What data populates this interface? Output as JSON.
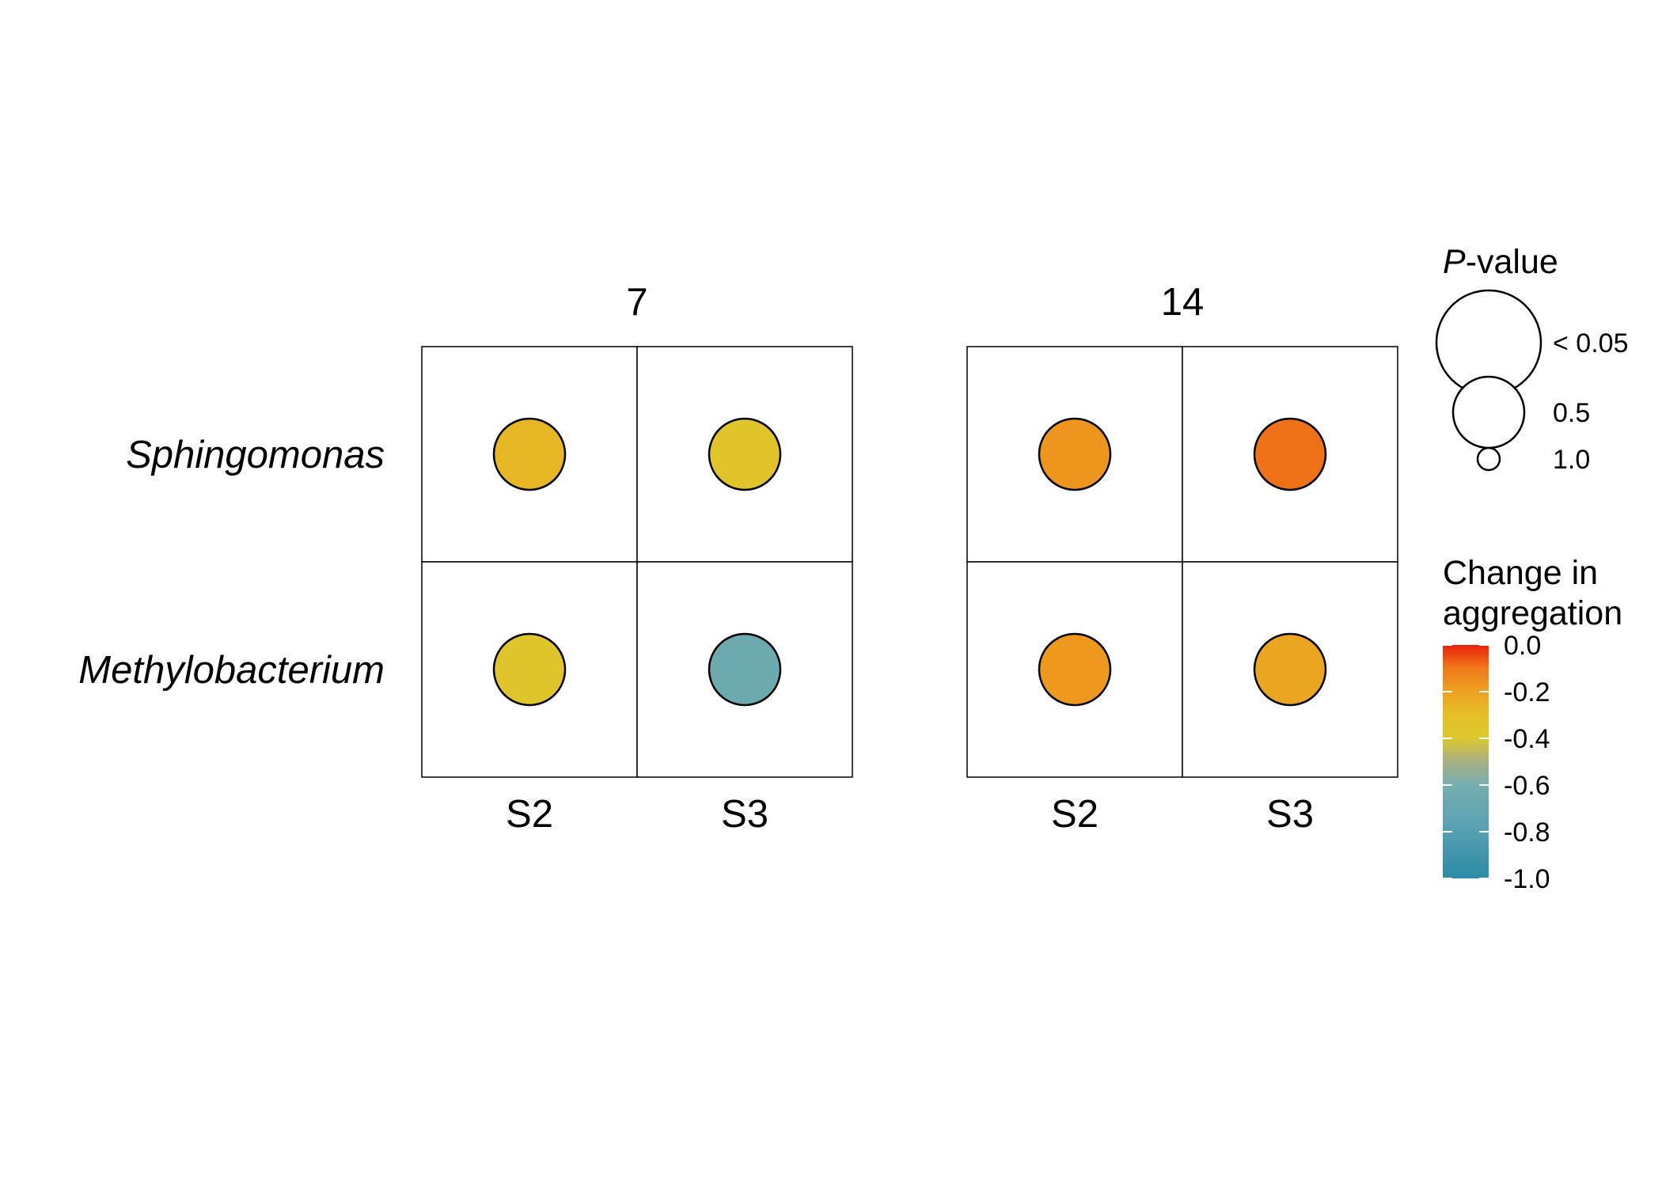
{
  "chart_data": {
    "type": "bubble-grid",
    "panels": [
      {
        "title": "7",
        "cells": [
          {
            "row": "Sphingomonas",
            "col": "S2",
            "change": -0.27,
            "pvalue_size": "0.5"
          },
          {
            "row": "Sphingomonas",
            "col": "S3",
            "change": -0.35,
            "pvalue_size": "0.5"
          },
          {
            "row": "Methylobacterium",
            "col": "S2",
            "change": -0.36,
            "pvalue_size": "0.5"
          },
          {
            "row": "Methylobacterium",
            "col": "S3",
            "change": -0.66,
            "pvalue_size": "0.5"
          }
        ]
      },
      {
        "title": "14",
        "cells": [
          {
            "row": "Sphingomonas",
            "col": "S2",
            "change": -0.17,
            "pvalue_size": "0.5"
          },
          {
            "row": "Sphingomonas",
            "col": "S3",
            "change": -0.09,
            "pvalue_size": "0.5"
          },
          {
            "row": "Methylobacterium",
            "col": "S2",
            "change": -0.18,
            "pvalue_size": "0.5"
          },
          {
            "row": "Methylobacterium",
            "col": "S3",
            "change": -0.22,
            "pvalue_size": "0.5"
          }
        ]
      }
    ],
    "rows": [
      "Sphingomonas",
      "Methylobacterium"
    ],
    "columns": [
      "S2",
      "S3"
    ],
    "size_legend": {
      "title_italic": "P",
      "title_rest": "-value",
      "items": [
        {
          "label": "< 0.05"
        },
        {
          "label": "0.5"
        },
        {
          "label": "1.0"
        }
      ]
    },
    "color_legend": {
      "title_line1": "Change in",
      "title_line2": "aggregation",
      "range": [
        -1.0,
        0.0
      ],
      "ticks": [
        {
          "value": 0.0,
          "label": "0.0"
        },
        {
          "value": -0.2,
          "label": "-0.2"
        },
        {
          "value": -0.4,
          "label": "-0.4"
        },
        {
          "value": -0.6,
          "label": "-0.6"
        },
        {
          "value": -0.8,
          "label": "-0.8"
        },
        {
          "value": -1.0,
          "label": "-1.0"
        }
      ],
      "color_stops": [
        {
          "value": 0.0,
          "color": "#E8220C"
        },
        {
          "value": -0.1,
          "color": "#F07A18"
        },
        {
          "value": -0.2,
          "color": "#EDA020"
        },
        {
          "value": -0.3,
          "color": "#E5BF25"
        },
        {
          "value": -0.4,
          "color": "#DCC72F"
        },
        {
          "value": -0.5,
          "color": "#A7B083"
        },
        {
          "value": -0.6,
          "color": "#76AEB0"
        },
        {
          "value": -0.8,
          "color": "#559FB1"
        },
        {
          "value": -1.0,
          "color": "#2B8BA6"
        }
      ]
    }
  }
}
